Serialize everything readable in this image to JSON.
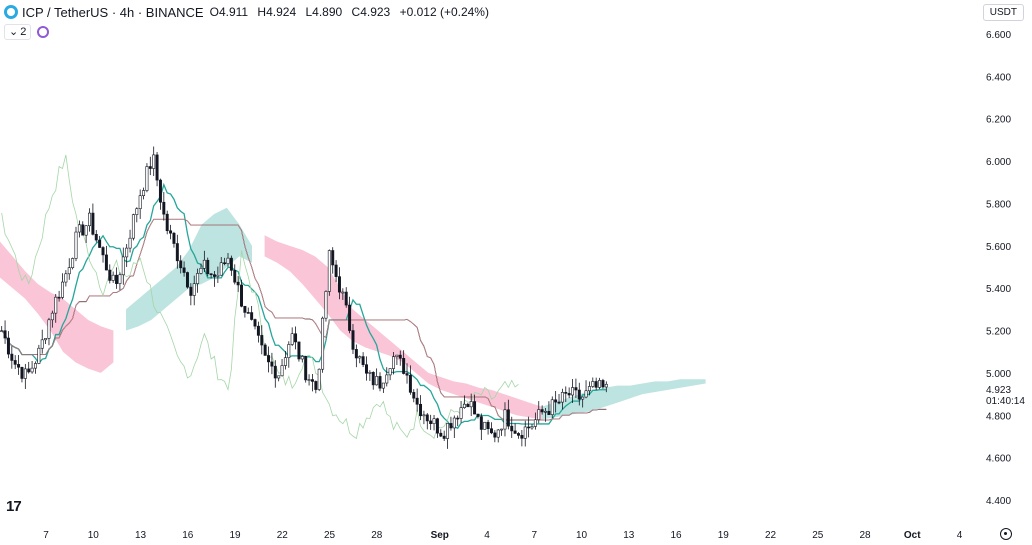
{
  "header": {
    "symbol_title": "ICP / TetherUS · 4h · BINANCE",
    "open_label": "O",
    "open": "4.911",
    "high_label": "H",
    "high": "4.924",
    "low_label": "L",
    "low": "4.890",
    "close_label": "C",
    "close": "4.923",
    "change": "+0.012 (+0.24%)",
    "logo_icon": "icp-logo-icon"
  },
  "indicators": {
    "count": "2",
    "toggle_icon": "chevron-down-icon",
    "indicator_icon": "refresh-icon"
  },
  "currency_button": "USDT",
  "price_label": {
    "price": "4.923",
    "countdown": "01:40:14"
  },
  "brand": "17",
  "colors": {
    "bull": "#26a69a",
    "bear": "#131722",
    "candle_body": "#131722",
    "cloud_bull": "#b2dfdb",
    "cloud_bear": "#f8bbd0",
    "tenkan": "#26a69a",
    "kijun": "#131722",
    "chikou": "#a5d6a7",
    "lead": "#ef9a9a"
  },
  "chart_data": {
    "type": "candlestick",
    "symbol": "ICP / TetherUS",
    "interval": "4h",
    "exchange": "BINANCE",
    "y_ticks": [
      "6.600",
      "6.400",
      "6.200",
      "6.000",
      "5.800",
      "5.600",
      "5.400",
      "5.200",
      "5.000",
      "4.800",
      "4.600",
      "4.400"
    ],
    "y_values": [
      6.6,
      6.4,
      6.2,
      6.0,
      5.8,
      5.6,
      5.4,
      5.2,
      5.0,
      4.8,
      4.6,
      4.4
    ],
    "x_ticks": [
      "7",
      "10",
      "13",
      "16",
      "19",
      "22",
      "25",
      "28",
      "Sep",
      "4",
      "7",
      "10",
      "13",
      "16",
      "19",
      "22",
      "25",
      "28",
      "Oct",
      "4"
    ],
    "x_tick_bold": [
      false,
      false,
      false,
      false,
      false,
      false,
      false,
      false,
      true,
      false,
      false,
      false,
      false,
      false,
      false,
      false,
      false,
      false,
      true,
      false
    ],
    "ylim": [
      4.35,
      6.7
    ],
    "x_day_index": [
      0,
      3,
      6,
      9,
      12,
      15,
      18,
      21,
      25,
      28,
      31,
      34,
      37,
      40,
      43,
      46,
      49,
      52,
      55,
      58
    ],
    "close_series": [
      5.2,
      5.05,
      4.98,
      5.1,
      5.3,
      5.45,
      5.65,
      5.72,
      5.55,
      5.4,
      5.62,
      5.85,
      6.02,
      5.7,
      5.55,
      5.4,
      5.5,
      5.45,
      5.55,
      5.35,
      5.2,
      5.05,
      5.0,
      5.18,
      5.02,
      4.92,
      5.55,
      5.38,
      5.12,
      4.98,
      4.95,
      5.08,
      5.02,
      4.85,
      4.78,
      4.72,
      4.8,
      4.88,
      4.75,
      4.7,
      4.8,
      4.72,
      4.75,
      4.82,
      4.85,
      4.9,
      4.88,
      4.93,
      4.92
    ],
    "ichimoku": {
      "cloud_bear_segments": [
        {
          "start": 0,
          "end": 9,
          "top": [
            5.62,
            5.55,
            5.48,
            5.42,
            5.38,
            5.35,
            5.3,
            5.25,
            5.22,
            5.2
          ],
          "bottom": [
            5.45,
            5.4,
            5.35,
            5.28,
            5.2,
            5.1,
            5.05,
            5.02,
            5.0,
            5.05
          ]
        },
        {
          "start": 21,
          "end": 43,
          "top": [
            5.65,
            5.62,
            5.6,
            5.58,
            5.55,
            5.5,
            5.4,
            5.3,
            5.25,
            5.2,
            5.15,
            5.1,
            5.05,
            5.0,
            4.98,
            4.96,
            4.95,
            4.93,
            4.92,
            4.9,
            4.88,
            4.86,
            4.84
          ],
          "bottom": [
            5.55,
            5.52,
            5.48,
            5.42,
            5.35,
            5.28,
            5.2,
            5.15,
            5.12,
            5.1,
            5.08,
            5.05,
            5.0,
            4.95,
            4.92,
            4.9,
            4.88,
            4.86,
            4.84,
            4.82,
            4.8,
            4.79,
            4.78
          ]
        }
      ],
      "cloud_bull_segments": [
        {
          "start": 10,
          "end": 20,
          "top": [
            5.3,
            5.35,
            5.4,
            5.45,
            5.5,
            5.58,
            5.7,
            5.75,
            5.78,
            5.7,
            5.6
          ],
          "bottom": [
            5.2,
            5.22,
            5.25,
            5.3,
            5.35,
            5.4,
            5.42,
            5.45,
            5.5,
            5.55,
            5.52
          ]
        },
        {
          "start": 43,
          "end": 56,
          "top": [
            4.84,
            4.86,
            4.88,
            4.9,
            4.92,
            4.93,
            4.94,
            4.94,
            4.95,
            4.96,
            4.96,
            4.97,
            4.97,
            4.97
          ],
          "bottom": [
            4.78,
            4.79,
            4.8,
            4.81,
            4.82,
            4.84,
            4.86,
            4.88,
            4.9,
            4.91,
            4.92,
            4.93,
            4.94,
            4.95
          ]
        }
      ]
    }
  }
}
